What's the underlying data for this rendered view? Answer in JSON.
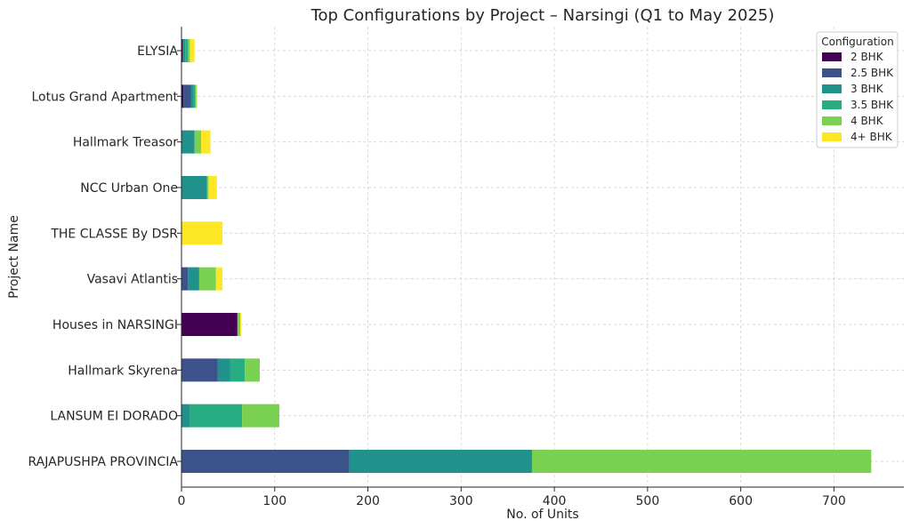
{
  "chart_data": {
    "type": "bar",
    "orientation": "horizontal",
    "stacked": true,
    "title": "Top Configurations by Project – Narsingi (Q1 to May 2025)",
    "xlabel": "No. of Units",
    "ylabel": "Project Name",
    "xlim": [
      0,
      775
    ],
    "xticks": [
      0,
      100,
      200,
      300,
      400,
      500,
      600,
      700
    ],
    "grid": true,
    "legend_title": "Configuration",
    "legend_position": "top-right",
    "categories": [
      "RAJAPUSHPA PROVINCIA",
      "LANSUM EI DORADO",
      "Hallmark Skyrena",
      "Houses in NARSINGI",
      "Vasavi Atlantis",
      "THE CLASSE By DSR",
      "NCC Urban One",
      "Hallmark Treasor",
      "Lotus Grand Apartment",
      "ELYSIA"
    ],
    "series": [
      {
        "name": "2 BHK",
        "color": "#440154",
        "values": [
          0,
          0,
          0,
          60,
          0,
          0,
          0,
          0,
          2,
          1
        ]
      },
      {
        "name": "2.5 BHK",
        "color": "#3b528b",
        "values": [
          180,
          0,
          39,
          0,
          7,
          0,
          0,
          0,
          8,
          1
        ]
      },
      {
        "name": "3 BHK",
        "color": "#21918c",
        "values": [
          196,
          9,
          13,
          0,
          12,
          0,
          27,
          14,
          3,
          2
        ]
      },
      {
        "name": "3.5 BHK",
        "color": "#27ad81",
        "values": [
          0,
          56,
          16,
          0,
          0,
          0,
          1,
          0,
          2,
          3
        ]
      },
      {
        "name": "4 BHK",
        "color": "#7ad151",
        "values": [
          364,
          40,
          16,
          3,
          18,
          0,
          1,
          7,
          1,
          2
        ]
      },
      {
        "name": "4+ BHK",
        "color": "#fde725",
        "values": [
          0,
          0,
          0,
          1,
          7,
          44,
          9,
          10,
          1,
          5
        ]
      }
    ]
  }
}
